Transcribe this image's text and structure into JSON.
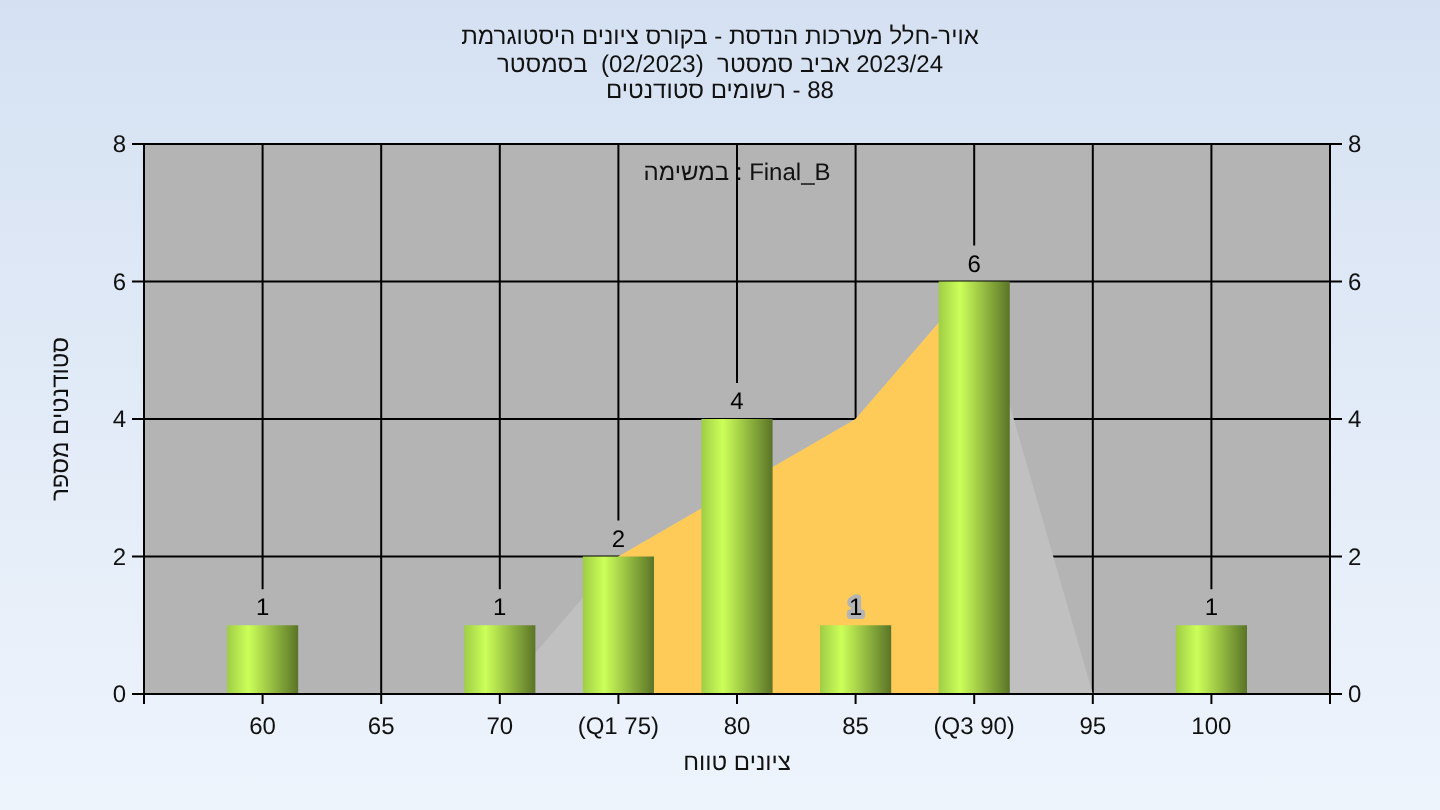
{
  "chart_data": {
    "type": "bar",
    "title": "היסטוגרמת ציונים בקורס - הנדסת מערכות אויר-חלל",
    "subtitle": "בסמסטר  (02/2023)  סמסטר אביב 2023/24\nסטודנטים רשומים - 88",
    "xlabel": "טווח ציונים",
    "ylabel": "מספר סטודנטים",
    "annotations": [
      "במשימה : Final_B"
    ],
    "categories": [
      "60",
      "65",
      "70",
      "(Q1 75)",
      "80",
      "85",
      "(Q3 90)",
      "95",
      "100"
    ],
    "series": [
      {
        "type": "area",
        "color": "#c0c0c0",
        "values": [
          null,
          null,
          0,
          2,
          null,
          4,
          6,
          0,
          null
        ]
      },
      {
        "type": "area",
        "color": "#fecb58",
        "values": [
          null,
          null,
          null,
          2,
          null,
          4,
          6,
          null,
          null
        ]
      },
      {
        "color": "#8fb83e",
        "values": [
          1,
          0,
          1,
          2,
          4,
          1,
          6,
          0,
          1
        ],
        "value_labels": [
          "1",
          null,
          "1",
          "2",
          "4",
          "1",
          "6",
          null,
          "1"
        ]
      }
    ],
    "ylim": [
      0,
      8
    ],
    "yticks": [
      0,
      2,
      4,
      6,
      8
    ],
    "y2lim": [
      0,
      8
    ],
    "y2ticks": [
      0,
      2,
      4,
      6,
      8
    ],
    "grid": true
  }
}
